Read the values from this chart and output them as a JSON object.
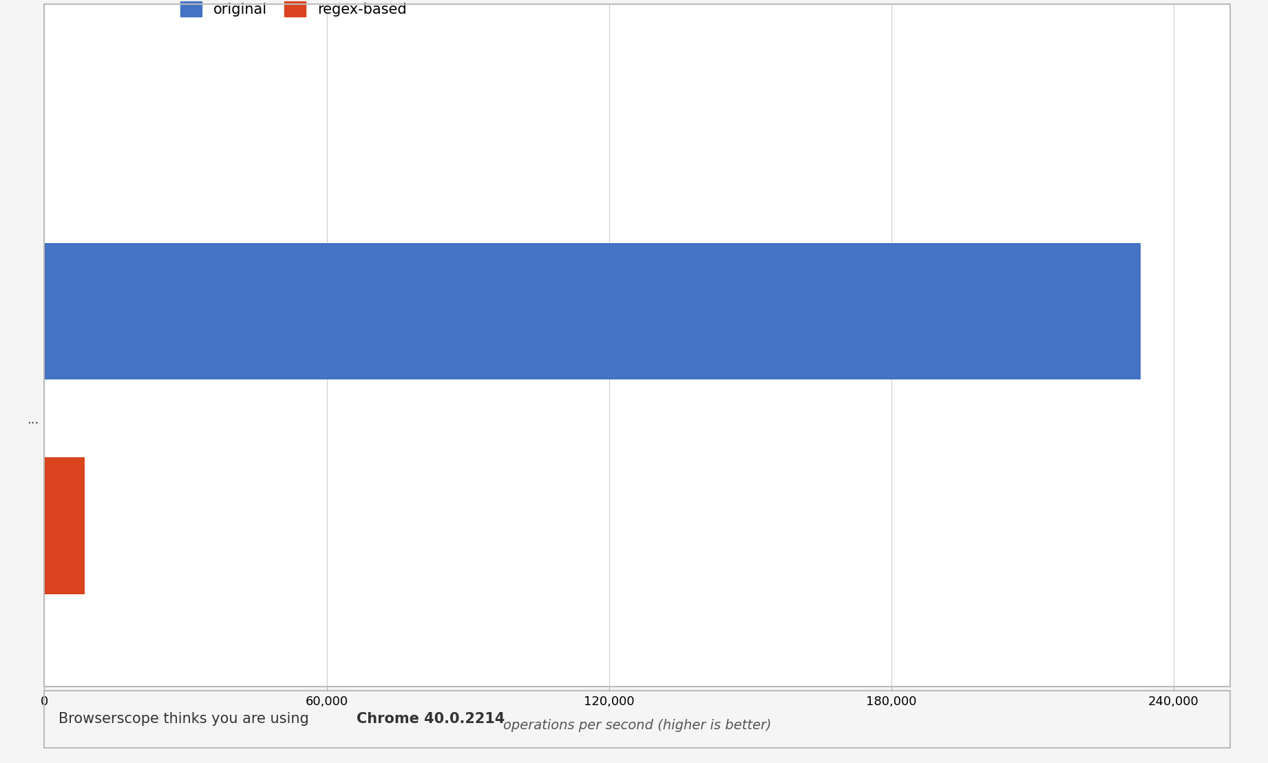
{
  "series": [
    {
      "label": "original",
      "value": 233000,
      "color": "#4472C4"
    },
    {
      "label": "regex-based",
      "value": 8500,
      "color": "#D9431E"
    }
  ],
  "xlim": [
    0,
    252000
  ],
  "xticks": [
    0,
    60000,
    120000,
    180000,
    240000
  ],
  "xlabel": "operations per second (higher is better)",
  "background_color": "#FFFFFF",
  "outer_background": "#F5F5F5",
  "grid_color": "#CCCCCC",
  "footer_text": "Browserscope thinks you are using ",
  "footer_bold": "Chrome 40.0.2214",
  "footer_bg": "#DCDCDC",
  "legend_entries": [
    {
      "label": "original",
      "color": "#4472C4"
    },
    {
      "label": "regex-based",
      "color": "#D9431E"
    }
  ],
  "y_label_text": "...",
  "bar_height": 0.28
}
